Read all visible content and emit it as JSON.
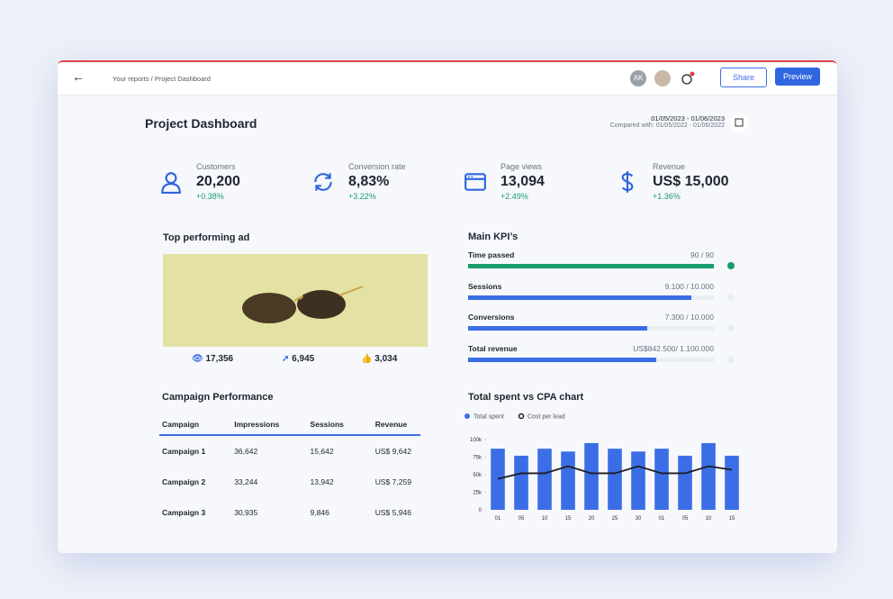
{
  "header": {
    "breadcrumb": "Your reports / Project Dashboard",
    "avatar_initials": "AK",
    "share": "Share",
    "preview": "Preview"
  },
  "title": "Project Dashboard",
  "date_range": "01/05/2023 - 01/06/2023",
  "compared": "Compared with: 01/05/2022 - 01/06/2022",
  "metrics": [
    {
      "label": "Customers",
      "value": "20,200",
      "change": "+0.38%"
    },
    {
      "label": "Conversion rate",
      "value": "8,83%",
      "change": "+3.22%"
    },
    {
      "label": "Page views",
      "value": "13,094",
      "change": "+2.49%"
    },
    {
      "label": "Revenue",
      "value": "US$ 15,000",
      "change": "+1.36%"
    }
  ],
  "top_ad": {
    "title": "Top performing ad",
    "views": "17,356",
    "shares": "6,945",
    "likes": "3,034"
  },
  "kpis": {
    "title": "Main KPI’s",
    "items": [
      {
        "name": "Time passed",
        "label": "90 / 90",
        "value": 90,
        "max": 90,
        "color": "#1a9b6c"
      },
      {
        "name": "Sessions",
        "label": "9.100 / 10.000",
        "value": 9100,
        "max": 10000,
        "color": "#3b6ee6"
      },
      {
        "name": "Conversions",
        "label": "7.300 / 10.000",
        "value": 7300,
        "max": 10000,
        "color": "#3b6ee6"
      },
      {
        "name": "Total revenue",
        "label": "US$842.500/ 1.100.000",
        "value": 842500,
        "max": 1100000,
        "color": "#3b6ee6"
      }
    ]
  },
  "campaigns": {
    "title": "Campaign Performance",
    "columns": [
      "Campaign",
      "Impressions",
      "Sessions",
      "Revenue"
    ],
    "rows": [
      [
        "Campaign 1",
        "36,642",
        "15,642",
        "US$ 9,642"
      ],
      [
        "Campaign 2",
        "33,244",
        "13,942",
        "US$ 7,259"
      ],
      [
        "Campaign 3",
        "30,935",
        "9,846",
        "US$ 5,946"
      ]
    ]
  },
  "chart_data": {
    "type": "bar",
    "title": "Total spent vs CPA chart",
    "categories": [
      "01",
      "05",
      "10",
      "15",
      "20",
      "25",
      "30",
      "01",
      "05",
      "10",
      "15"
    ],
    "series": [
      {
        "name": "Total spent",
        "type": "bar",
        "color": "#3b6ee6",
        "values": [
          87000,
          77000,
          87000,
          83000,
          95000,
          87000,
          83000,
          87000,
          77000,
          95000,
          77000
        ]
      },
      {
        "name": "Cost per lead",
        "type": "line",
        "color": "#1d1d1f",
        "values": [
          44000,
          52000,
          52000,
          62000,
          52000,
          52000,
          62000,
          52000,
          52000,
          62000,
          57000
        ]
      }
    ],
    "ylim": [
      0,
      100000
    ],
    "yticks": [
      0,
      {
        "value": 25000,
        "label": "25k"
      },
      {
        "value": 50000,
        "label": "50k"
      },
      {
        "value": 75000,
        "label": "75k"
      },
      {
        "value": 100000,
        "label": "100k"
      }
    ]
  }
}
